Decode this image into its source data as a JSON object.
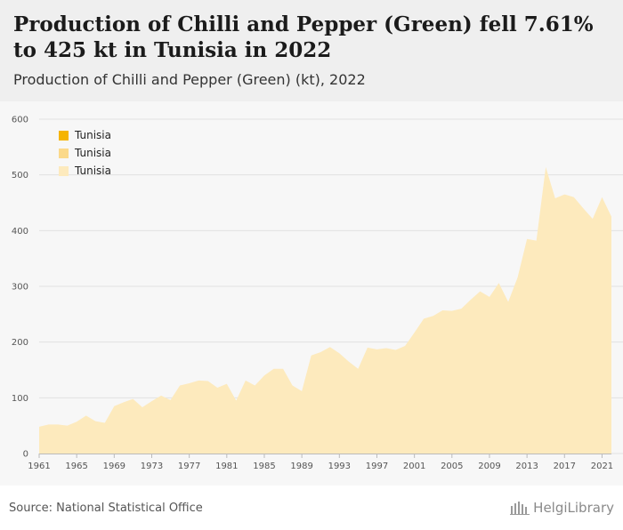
{
  "header": {
    "title": "Production of Chilli and Pepper (Green) fell 7.61% to 425 kt in Tunisia in 2022",
    "subtitle": "Production of Chilli and Pepper (Green) (kt), 2022"
  },
  "legend": {
    "items": [
      {
        "label": "Tunisia",
        "color": "#f5b400"
      },
      {
        "label": "Tunisia",
        "color": "#fbd98a"
      },
      {
        "label": "Tunisia",
        "color": "#fdeabd"
      }
    ]
  },
  "footer": {
    "source": "Source: National Statistical Office",
    "brand": "HelgiLibrary"
  },
  "chart_data": {
    "type": "area",
    "title": "Production of Chilli and Pepper (Green) (kt), 2022",
    "xlabel": "",
    "ylabel": "",
    "ylim": [
      0,
      600
    ],
    "yticks": [
      0,
      100,
      200,
      300,
      400,
      500,
      600
    ],
    "xticks": [
      1961,
      1965,
      1969,
      1973,
      1977,
      1981,
      1985,
      1989,
      1993,
      1997,
      2001,
      2005,
      2009,
      2013,
      2017,
      2021
    ],
    "grid": true,
    "legend_position": "top-left",
    "fill_color": "#fdeabd",
    "series": [
      {
        "name": "Tunisia",
        "x": [
          1961,
          1962,
          1963,
          1964,
          1965,
          1966,
          1967,
          1968,
          1969,
          1970,
          1971,
          1972,
          1973,
          1974,
          1975,
          1976,
          1977,
          1978,
          1979,
          1980,
          1981,
          1982,
          1983,
          1984,
          1985,
          1986,
          1987,
          1988,
          1989,
          1990,
          1991,
          1992,
          1993,
          1994,
          1995,
          1996,
          1997,
          1998,
          1999,
          2000,
          2001,
          2002,
          2003,
          2004,
          2005,
          2006,
          2007,
          2008,
          2009,
          2010,
          2011,
          2012,
          2013,
          2014,
          2015,
          2016,
          2017,
          2018,
          2019,
          2020,
          2021,
          2022
        ],
        "values": [
          48,
          52,
          52,
          50,
          57,
          68,
          58,
          55,
          85,
          92,
          98,
          83,
          94,
          104,
          96,
          122,
          126,
          131,
          130,
          118,
          125,
          95,
          131,
          122,
          140,
          152,
          152,
          122,
          112,
          176,
          182,
          191,
          180,
          165,
          152,
          190,
          187,
          189,
          186,
          193,
          217,
          242,
          247,
          257,
          256,
          260,
          276,
          291,
          281,
          306,
          272,
          316,
          385,
          382,
          514,
          458,
          465,
          460,
          440,
          421,
          460,
          425
        ]
      }
    ]
  }
}
